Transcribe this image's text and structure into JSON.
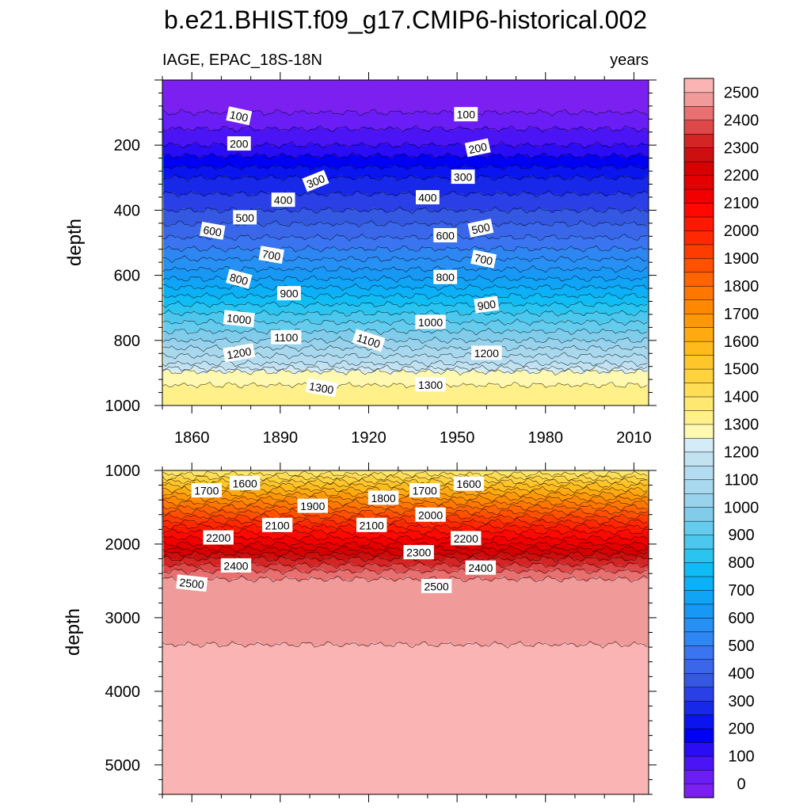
{
  "figure": {
    "title": "b.e21.BHIST.f09_g17.CMIP6-historical.002",
    "left_label": "IAGE, EPAC_18S-18N",
    "right_label": "years"
  },
  "chart_data": [
    {
      "type": "heatmap",
      "name": "upper-panel",
      "title": "b.e21.BHIST.f09_g17.CMIP6-historical.002",
      "subtitle_left": "IAGE, EPAC_18S-18N",
      "subtitle_right": "years",
      "xlabel": "",
      "ylabel": "depth",
      "xlim": [
        1850,
        2015
      ],
      "ylim": [
        0,
        1000
      ],
      "y_reversed": true,
      "xticks": [
        1860,
        1890,
        1920,
        1950,
        1980,
        2010
      ],
      "xtick_labels": [
        "1860",
        "1890",
        "1920",
        "1950",
        "1980",
        "2010"
      ],
      "yticks": [
        200,
        400,
        600,
        800,
        1000
      ],
      "ytick_labels": [
        "200",
        "400",
        "600",
        "800",
        "1000"
      ],
      "contour_interval": 50,
      "depth_age_profile": [
        [
          0,
          0
        ],
        [
          50,
          25
        ],
        [
          100,
          50
        ],
        [
          200,
          150
        ],
        [
          300,
          300
        ],
        [
          400,
          400
        ],
        [
          500,
          520
        ],
        [
          600,
          680
        ],
        [
          700,
          870
        ],
        [
          800,
          1050
        ],
        [
          880,
          1220
        ],
        [
          900,
          1320
        ],
        [
          1000,
          1400
        ]
      ],
      "contour_labels": [
        {
          "text": "100",
          "x": 1876,
          "y": 110,
          "angle": 12
        },
        {
          "text": "100",
          "x": 1953,
          "y": 105,
          "angle": 0
        },
        {
          "text": "200",
          "x": 1876,
          "y": 195,
          "angle": 0
        },
        {
          "text": "200",
          "x": 1957,
          "y": 208,
          "angle": -12
        },
        {
          "text": "300",
          "x": 1902,
          "y": 310,
          "angle": -22
        },
        {
          "text": "300",
          "x": 1952,
          "y": 297,
          "angle": 0
        },
        {
          "text": "400",
          "x": 1891,
          "y": 368,
          "angle": 0
        },
        {
          "text": "400",
          "x": 1940,
          "y": 360,
          "angle": 0
        },
        {
          "text": "500",
          "x": 1878,
          "y": 422,
          "angle": 0
        },
        {
          "text": "500",
          "x": 1958,
          "y": 455,
          "angle": -12
        },
        {
          "text": "600",
          "x": 1867,
          "y": 463,
          "angle": 10
        },
        {
          "text": "600",
          "x": 1946,
          "y": 477,
          "angle": 0
        },
        {
          "text": "700",
          "x": 1887,
          "y": 537,
          "angle": 10
        },
        {
          "text": "700",
          "x": 1959,
          "y": 550,
          "angle": 12
        },
        {
          "text": "800",
          "x": 1876,
          "y": 611,
          "angle": 15
        },
        {
          "text": "800",
          "x": 1946,
          "y": 605,
          "angle": 0
        },
        {
          "text": "900",
          "x": 1893,
          "y": 655,
          "angle": 0
        },
        {
          "text": "900",
          "x": 1960,
          "y": 690,
          "angle": -8
        },
        {
          "text": "1000",
          "x": 1876,
          "y": 733,
          "angle": 6
        },
        {
          "text": "1000",
          "x": 1941,
          "y": 743,
          "angle": 0
        },
        {
          "text": "1100",
          "x": 1892,
          "y": 790,
          "angle": 0
        },
        {
          "text": "1100",
          "x": 1920,
          "y": 800,
          "angle": 18
        },
        {
          "text": "1200",
          "x": 1876,
          "y": 838,
          "angle": -10
        },
        {
          "text": "1200",
          "x": 1960,
          "y": 838,
          "angle": 0
        },
        {
          "text": "1300",
          "x": 1904,
          "y": 945,
          "angle": 10
        },
        {
          "text": "1300",
          "x": 1941,
          "y": 935,
          "angle": 0
        }
      ]
    },
    {
      "type": "heatmap",
      "name": "lower-panel",
      "xlabel": "",
      "ylabel": "depth",
      "xlim": [
        1850,
        2015
      ],
      "ylim": [
        1000,
        5400
      ],
      "y_reversed": true,
      "yticks": [
        1000,
        2000,
        3000,
        4000,
        5000
      ],
      "ytick_labels": [
        "1000",
        "2000",
        "3000",
        "4000",
        "5000"
      ],
      "contour_interval": 50,
      "depth_age_profile": [
        [
          1000,
          1400
        ],
        [
          1200,
          1600
        ],
        [
          1500,
          1850
        ],
        [
          1800,
          2080
        ],
        [
          2000,
          2200
        ],
        [
          2200,
          2350
        ],
        [
          2400,
          2470
        ],
        [
          2550,
          2530
        ],
        [
          5400,
          2600
        ]
      ],
      "contour_labels": [
        {
          "text": "1700",
          "x": 1865,
          "y": 1270,
          "angle": 0
        },
        {
          "text": "1600",
          "x": 1878,
          "y": 1170,
          "angle": 0
        },
        {
          "text": "1900",
          "x": 1901,
          "y": 1480,
          "angle": 0
        },
        {
          "text": "1800",
          "x": 1925,
          "y": 1370,
          "angle": 0
        },
        {
          "text": "1700",
          "x": 1939,
          "y": 1270,
          "angle": 0
        },
        {
          "text": "1600",
          "x": 1954,
          "y": 1180,
          "angle": 0
        },
        {
          "text": "2000",
          "x": 1941,
          "y": 1600,
          "angle": 0
        },
        {
          "text": "2100",
          "x": 1889,
          "y": 1740,
          "angle": 0
        },
        {
          "text": "2100",
          "x": 1921,
          "y": 1740,
          "angle": 0
        },
        {
          "text": "2200",
          "x": 1869,
          "y": 1910,
          "angle": 0
        },
        {
          "text": "2200",
          "x": 1953,
          "y": 1920,
          "angle": 0
        },
        {
          "text": "2300",
          "x": 1937,
          "y": 2110,
          "angle": 0
        },
        {
          "text": "2400",
          "x": 1875,
          "y": 2290,
          "angle": 0
        },
        {
          "text": "2400",
          "x": 1958,
          "y": 2320,
          "angle": 0
        },
        {
          "text": "2500",
          "x": 1860,
          "y": 2530,
          "angle": 6
        },
        {
          "text": "2500",
          "x": 1943,
          "y": 2570,
          "angle": 0
        }
      ]
    }
  ],
  "colorbar": {
    "min": 0,
    "max": 2600,
    "interval": 50,
    "tick_values": [
      0,
      100,
      200,
      300,
      400,
      500,
      600,
      700,
      800,
      900,
      1000,
      1100,
      1200,
      1300,
      1400,
      1500,
      1600,
      1700,
      1800,
      1900,
      2000,
      2100,
      2200,
      2300,
      2400,
      2500
    ],
    "tick_labels": [
      "0",
      "100",
      "200",
      "300",
      "400",
      "500",
      "600",
      "700",
      "800",
      "900",
      "1000",
      "1100",
      "1200",
      "1300",
      "1400",
      "1500",
      "1600",
      "1700",
      "1800",
      "1900",
      "2000",
      "2100",
      "2200",
      "2300",
      "2400",
      "2500"
    ],
    "colors": [
      "#7b20f0",
      "#6a1ef5",
      "#4b14f5",
      "#2a0cf5",
      "#0000f5",
      "#0a14ef",
      "#1828e8",
      "#2a40e6",
      "#3458e2",
      "#3a66ea",
      "#3a74f0",
      "#2e86f2",
      "#2690f4",
      "#1898f5",
      "#10a4f6",
      "#0cb0f6",
      "#10bcf4",
      "#2ac4f0",
      "#4cc8ee",
      "#66ccee",
      "#80ccea",
      "#98d2ec",
      "#a8d8ee",
      "#b4dcf0",
      "#c2e2f2",
      "#d4ecf8",
      "#fff8b0",
      "#fff08a",
      "#ffe870",
      "#ffde56",
      "#ffd23e",
      "#ffc62c",
      "#ffba1c",
      "#ffaa10",
      "#ff9808",
      "#ff8800",
      "#ff7600",
      "#ff6400",
      "#ff5000",
      "#ff3c00",
      "#ff2800",
      "#ff1800",
      "#ff0800",
      "#f20000",
      "#e40000",
      "#d60000",
      "#cc1010",
      "#d42424",
      "#de4848",
      "#e87070",
      "#f09a9a",
      "#fab4b4"
    ]
  }
}
